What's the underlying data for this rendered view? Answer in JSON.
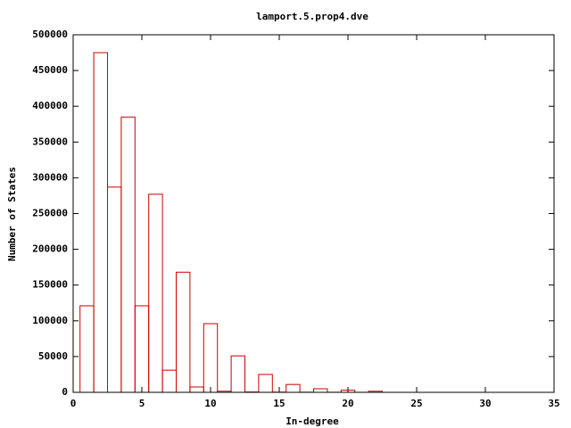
{
  "chart_data": {
    "type": "bar",
    "title": "lamport.5.prop4.dve",
    "xlabel": "In-degree",
    "ylabel": "Number of States",
    "x": [
      1,
      2,
      3,
      4,
      5,
      6,
      7,
      8,
      9,
      10,
      11,
      12,
      13,
      14,
      15,
      16,
      17,
      18,
      19,
      20,
      21,
      22
    ],
    "values": [
      121000,
      475000,
      287000,
      385000,
      121000,
      277000,
      31000,
      168000,
      7500,
      96000,
      1500,
      51000,
      500,
      25000,
      300,
      11000,
      200,
      5000,
      100,
      3000,
      50,
      1500
    ],
    "color": "#cc0000",
    "xlim": [
      0,
      35
    ],
    "xticks": [
      0,
      5,
      10,
      15,
      20,
      25,
      30,
      35
    ],
    "ylim": [
      0,
      500000
    ],
    "yticks": [
      0,
      50000,
      100000,
      150000,
      200000,
      250000,
      300000,
      350000,
      400000,
      450000,
      500000
    ]
  }
}
